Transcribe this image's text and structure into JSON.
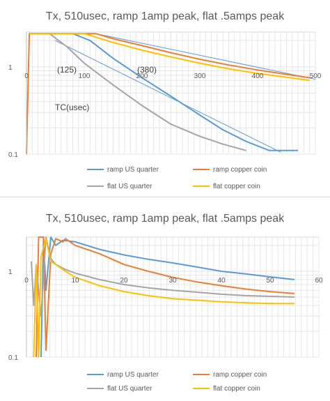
{
  "chart_data": [
    {
      "type": "line",
      "title": "Tx, 510usec, ramp 1amp peak, flat .5amps peak",
      "xlabel": "",
      "ylabel": "",
      "xlim": [
        0,
        500
      ],
      "ylim": [
        0.1,
        2.5
      ],
      "yscale": "log",
      "xticks": [
        "0",
        "100",
        "200",
        "300",
        "400",
        "500"
      ],
      "yticks": [
        "0.1",
        "1"
      ],
      "grid": true,
      "legend_position": "bottom",
      "annotations": [
        "(125)",
        "(380)",
        "TC(usec)"
      ],
      "series": [
        {
          "name": "ramp US quarter",
          "color": "#5b9bd5",
          "x": [
            5,
            80,
            110,
            150,
            200,
            250,
            300,
            340,
            380,
            420,
            470
          ],
          "y": [
            2.4,
            2.4,
            2.0,
            1.25,
            0.75,
            0.46,
            0.28,
            0.19,
            0.14,
            0.11,
            0.11
          ]
        },
        {
          "name": "ramp copper coin",
          "color": "#ed7d31",
          "x": [
            0,
            5,
            120,
            150,
            200,
            250,
            300,
            350,
            400,
            450,
            490
          ],
          "y": [
            0.1,
            2.4,
            2.4,
            2.1,
            1.75,
            1.45,
            1.22,
            1.05,
            0.92,
            0.82,
            0.75
          ]
        },
        {
          "name": "flat US quarter",
          "color": "#a5a5a5",
          "x": [
            5,
            40,
            70,
            100,
            150,
            200,
            250,
            300,
            340,
            380
          ],
          "y": [
            2.4,
            2.4,
            1.7,
            1.1,
            0.62,
            0.36,
            0.22,
            0.16,
            0.13,
            0.11
          ]
        },
        {
          "name": "flat copper coin",
          "color": "#ffc000",
          "x": [
            5,
            100,
            150,
            200,
            250,
            300,
            350,
            400,
            450,
            490
          ],
          "y": [
            2.4,
            2.4,
            1.9,
            1.55,
            1.3,
            1.1,
            0.95,
            0.84,
            0.76,
            0.7
          ]
        }
      ],
      "trendlines": [
        {
          "color": "#5b9bd5",
          "x": [
            50,
            440
          ],
          "y": [
            2.0,
            0.105
          ]
        },
        {
          "color": "#5b9bd5",
          "x": [
            120,
            500
          ],
          "y": [
            2.4,
            0.72
          ]
        }
      ]
    },
    {
      "type": "line",
      "title": "Tx, 510usec, ramp 1amp peak, flat .5amps peak",
      "xlabel": "",
      "ylabel": "",
      "xlim": [
        0,
        60
      ],
      "ylim": [
        0.1,
        2.5
      ],
      "yscale": "log",
      "xticks": [
        "0",
        "10",
        "20",
        "30",
        "40",
        "50",
        "60"
      ],
      "yticks": [
        "0.1",
        "1"
      ],
      "grid": true,
      "legend_position": "bottom",
      "series": [
        {
          "name": "ramp US quarter",
          "color": "#5b9bd5",
          "x": [
            3,
            3.5,
            4,
            5,
            6,
            7.5,
            10,
            15,
            20,
            25,
            30,
            35,
            40,
            45,
            50,
            55
          ],
          "y": [
            0.1,
            2.5,
            0.6,
            2.5,
            2.0,
            2.3,
            2.2,
            1.8,
            1.55,
            1.38,
            1.25,
            1.12,
            1.0,
            0.93,
            0.86,
            0.8
          ]
        },
        {
          "name": "ramp copper coin",
          "color": "#ed7d31",
          "x": [
            2,
            2.5,
            3.5,
            4,
            5,
            6,
            7.5,
            8,
            10,
            15,
            20,
            25,
            30,
            35,
            40,
            45,
            50,
            55
          ],
          "y": [
            0.1,
            2.5,
            2.5,
            0.12,
            1.6,
            2.4,
            2.2,
            2.4,
            2.0,
            1.6,
            1.2,
            1.0,
            0.85,
            0.75,
            0.68,
            0.62,
            0.58,
            0.55
          ]
        },
        {
          "name": "flat US quarter",
          "color": "#a5a5a5",
          "x": [
            1,
            1.5,
            2,
            3,
            4,
            5,
            6,
            8,
            10,
            15,
            20,
            25,
            30,
            35,
            40,
            45,
            50,
            55
          ],
          "y": [
            1.3,
            0.4,
            1.2,
            0.3,
            2.5,
            1.4,
            1.2,
            1.05,
            0.95,
            0.8,
            0.7,
            0.64,
            0.6,
            0.57,
            0.54,
            0.52,
            0.51,
            0.5
          ]
        },
        {
          "name": "flat copper coin",
          "color": "#ffc000",
          "x": [
            1.5,
            2,
            2.5,
            3,
            4,
            5,
            6,
            8,
            10,
            15,
            20,
            25,
            30,
            35,
            40,
            45,
            50,
            55
          ],
          "y": [
            0.1,
            1.2,
            0.1,
            1.5,
            2.4,
            1.3,
            1.2,
            1.0,
            0.85,
            0.68,
            0.58,
            0.52,
            0.48,
            0.46,
            0.44,
            0.43,
            0.42,
            0.42
          ]
        }
      ]
    }
  ]
}
